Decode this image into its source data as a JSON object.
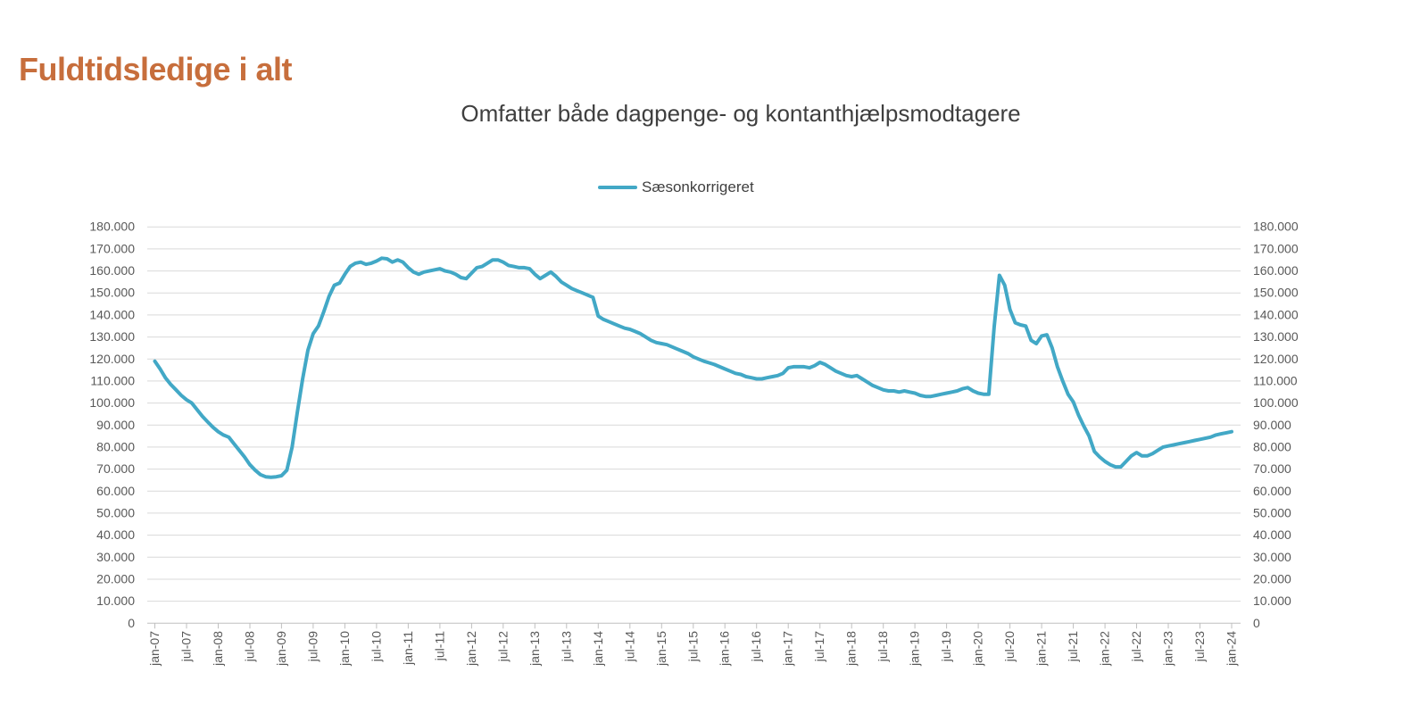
{
  "page": {
    "title": "Fuldtidsledige i alt"
  },
  "chart": {
    "subtitle": "Omfatter både dagpenge- og kontanthjælpsmodtagere",
    "legend_label": "Sæsonkorrigeret"
  },
  "colors": {
    "title": "#C76E3C",
    "subtitle_text": "#3F3F3F",
    "legend_text": "#3F3F3F",
    "axis_label_text": "#595959",
    "gridline": "#D9D9D9",
    "axis_line": "#BFBFBF",
    "series_line": "#42A8C6"
  },
  "chart_data": {
    "type": "line",
    "title": "Omfatter både dagpenge- og kontanthjælpsmodtagere",
    "legend_entries": [
      "Sæsonkorrigeret"
    ],
    "legend_position": "top-center",
    "grid": "horizontal-only",
    "x_start": "jan-07",
    "x_frequency": "monthly",
    "x_tick_labels": [
      "jan-07",
      "jul-07",
      "jan-08",
      "jul-08",
      "jan-09",
      "jul-09",
      "jan-10",
      "jul-10",
      "jan-11",
      "jul-11",
      "jan-12",
      "jul-12",
      "jan-13",
      "jul-13",
      "jan-14",
      "jul-14",
      "jan-15",
      "jul-15",
      "jan-16",
      "jul-16",
      "jan-17",
      "jul-17",
      "jan-18",
      "jul-18",
      "jan-19",
      "jul-19",
      "jan-20",
      "jul-20",
      "jan-21",
      "jul-21",
      "jan-22",
      "jul-22",
      "jan-23",
      "jul-23",
      "jan-24"
    ],
    "ylim": [
      0,
      180000
    ],
    "y_tick_step": 10000,
    "y_axis_sides": [
      "left",
      "right"
    ],
    "y_ticks": [
      {
        "value": 0,
        "label": "0"
      },
      {
        "value": 10000,
        "label": "10.000"
      },
      {
        "value": 20000,
        "label": "20.000"
      },
      {
        "value": 30000,
        "label": "30.000"
      },
      {
        "value": 40000,
        "label": "40.000"
      },
      {
        "value": 50000,
        "label": "50.000"
      },
      {
        "value": 60000,
        "label": "60.000"
      },
      {
        "value": 70000,
        "label": "70.000"
      },
      {
        "value": 80000,
        "label": "80.000"
      },
      {
        "value": 90000,
        "label": "90.000"
      },
      {
        "value": 100000,
        "label": "100.000"
      },
      {
        "value": 110000,
        "label": "110.000"
      },
      {
        "value": 120000,
        "label": "120.000"
      },
      {
        "value": 130000,
        "label": "130.000"
      },
      {
        "value": 140000,
        "label": "140.000"
      },
      {
        "value": 150000,
        "label": "150.000"
      },
      {
        "value": 160000,
        "label": "160.000"
      },
      {
        "value": 170000,
        "label": "170.000"
      },
      {
        "value": 180000,
        "label": "180.000"
      }
    ],
    "series": [
      {
        "name": "Sæsonkorrigeret",
        "color": "#42A8C6",
        "values": [
          119000,
          115500,
          111500,
          108500,
          106000,
          103500,
          101500,
          100000,
          97000,
          94000,
          91500,
          89000,
          87000,
          85500,
          84500,
          81500,
          78500,
          75500,
          72000,
          69500,
          67500,
          66500,
          66300,
          66500,
          67000,
          69500,
          80000,
          96000,
          111000,
          124000,
          131500,
          135000,
          141500,
          148500,
          153500,
          154500,
          158500,
          162000,
          163500,
          164000,
          163000,
          163500,
          164500,
          165800,
          165500,
          164000,
          165000,
          164000,
          161500,
          159500,
          158500,
          159500,
          160000,
          160500,
          161000,
          160000,
          159500,
          158500,
          157000,
          156500,
          159000,
          161500,
          162000,
          163500,
          165000,
          165000,
          164000,
          162500,
          162000,
          161500,
          161500,
          161000,
          158500,
          156500,
          158000,
          159500,
          157500,
          155000,
          153500,
          152000,
          151000,
          150000,
          149000,
          148000,
          139500,
          138000,
          137000,
          136000,
          135000,
          134000,
          133500,
          132500,
          131500,
          130000,
          128500,
          127500,
          127000,
          126500,
          125500,
          124500,
          123500,
          122500,
          121000,
          120000,
          119000,
          118300,
          117500,
          116500,
          115500,
          114500,
          113500,
          113000,
          112000,
          111500,
          111000,
          111000,
          111500,
          112000,
          112500,
          113500,
          116000,
          116500,
          116500,
          116500,
          116000,
          117000,
          118500,
          117500,
          116000,
          114500,
          113500,
          112500,
          112000,
          112500,
          111000,
          109500,
          108000,
          107000,
          106000,
          105500,
          105500,
          105000,
          105500,
          105000,
          104500,
          103500,
          103000,
          103000,
          103500,
          104000,
          104500,
          105000,
          105500,
          106500,
          107000,
          105500,
          104500,
          104000,
          104000,
          134500,
          158000,
          153500,
          142500,
          136500,
          135500,
          135000,
          128500,
          127000,
          130500,
          131000,
          125000,
          116500,
          110000,
          104000,
          100500,
          94500,
          89500,
          85000,
          78000,
          75500,
          73500,
          72000,
          71000,
          71000,
          73500,
          76000,
          77500,
          76000,
          76000,
          77000,
          78500,
          80000,
          80500,
          81000,
          81500,
          82000,
          82500,
          83000,
          83500,
          84000,
          84500,
          85500,
          86000,
          86500,
          87000
        ]
      }
    ]
  }
}
